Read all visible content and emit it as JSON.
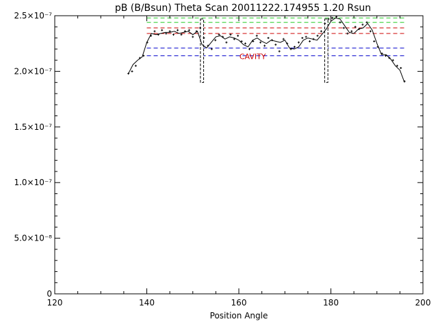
{
  "chart_data": {
    "type": "line",
    "title": "pB (B/Bsun) Theta Scan 20011222.174955 1.20 Rsun",
    "xlabel": "Position Angle",
    "ylabel": "",
    "xlim": [
      120,
      200
    ],
    "ylim": [
      0,
      2.5e-07
    ],
    "grid": false,
    "x_ticks": [
      {
        "value": 120,
        "label": "120"
      },
      {
        "value": 140,
        "label": "140"
      },
      {
        "value": 160,
        "label": "160"
      },
      {
        "value": 180,
        "label": "180"
      },
      {
        "value": 200,
        "label": "200"
      }
    ],
    "y_ticks": [
      {
        "value": 0,
        "label": "0"
      },
      {
        "value": 5e-08,
        "label": "5.0×10⁻⁸"
      },
      {
        "value": 1e-07,
        "label": "1.0×10⁻⁷"
      },
      {
        "value": 1.5e-07,
        "label": "1.5×10⁻⁷"
      },
      {
        "value": 2e-07,
        "label": "2.0×10⁻⁷"
      },
      {
        "value": 2.5e-07,
        "label": "2.5×10⁻⁷"
      }
    ],
    "series": [
      {
        "color": "#000000",
        "style": "line",
        "x": [
          136,
          137,
          138,
          139,
          140,
          141,
          142,
          143,
          144,
          145,
          146,
          147,
          148,
          149,
          150,
          151,
          152,
          153,
          154,
          155,
          156,
          157,
          158,
          159,
          160,
          161,
          162,
          163,
          164,
          165,
          166,
          167,
          168,
          169,
          170,
          171,
          172,
          173,
          174,
          175,
          176,
          177,
          178,
          179,
          180,
          181,
          182,
          183,
          184,
          185,
          186,
          187,
          188,
          189,
          190,
          191,
          192,
          193,
          194,
          195,
          196
        ],
        "y": [
          1.98e-07,
          2.06e-07,
          2.1e-07,
          2.13e-07,
          2.26e-07,
          2.34e-07,
          2.33e-07,
          2.34e-07,
          2.35e-07,
          2.35e-07,
          2.36e-07,
          2.34e-07,
          2.35e-07,
          2.36e-07,
          2.33e-07,
          2.36e-07,
          2.24e-07,
          2.21e-07,
          2.26e-07,
          2.31e-07,
          2.32e-07,
          2.29e-07,
          2.31e-07,
          2.3e-07,
          2.28e-07,
          2.24e-07,
          2.22e-07,
          2.28e-07,
          2.3e-07,
          2.27e-07,
          2.25e-07,
          2.28e-07,
          2.27e-07,
          2.26e-07,
          2.28e-07,
          2.21e-07,
          2.2e-07,
          2.22e-07,
          2.28e-07,
          2.3e-07,
          2.29e-07,
          2.28e-07,
          2.33e-07,
          2.38e-07,
          2.45e-07,
          2.48e-07,
          2.47e-07,
          2.41e-07,
          2.35e-07,
          2.34e-07,
          2.38e-07,
          2.39e-07,
          2.43e-07,
          2.37e-07,
          2.25e-07,
          2.15e-07,
          2.15e-07,
          2.11e-07,
          2.05e-07,
          2.01e-07,
          1.9e-07
        ]
      },
      {
        "color": "#000000",
        "style": "points",
        "x": [
          136,
          136.8,
          137.6,
          138.5,
          139.3,
          140.1,
          140.9,
          141.7,
          142.5,
          143.3,
          144.2,
          145,
          145.8,
          146.7,
          147.5,
          148.3,
          149.2,
          150,
          150.8,
          151.6,
          152.4,
          153.3,
          154.1,
          154.9,
          155.7,
          156.5,
          157.3,
          158.2,
          159,
          159.8,
          160.6,
          161.4,
          162.3,
          163.1,
          163.9,
          164.7,
          165.6,
          166.4,
          167.2,
          168,
          168.8,
          169.7,
          170.5,
          171.3,
          172.1,
          173,
          173.8,
          174.6,
          175.4,
          176.2,
          177.1,
          177.9,
          178.7,
          179.5,
          180.3,
          181.2,
          182,
          182.8,
          183.6,
          184.5,
          185.3,
          186.1,
          186.9,
          187.8,
          188.6,
          189.4,
          190.2,
          191.1,
          191.9,
          192.7,
          193.5,
          194.4,
          195.2,
          196
        ],
        "y": [
          1.98e-07,
          2e-07,
          2.05e-07,
          2.12e-07,
          2.14e-07,
          2.26e-07,
          2.32e-07,
          2.36e-07,
          2.33e-07,
          2.37e-07,
          2.34e-07,
          2.36e-07,
          2.33e-07,
          2.37e-07,
          2.33e-07,
          2.36e-07,
          2.37e-07,
          2.31e-07,
          2.36e-07,
          2.39e-07,
          2.3e-07,
          2.23e-07,
          2.2e-07,
          2.28e-07,
          2.33e-07,
          2.31e-07,
          2.26e-07,
          2.33e-07,
          2.29e-07,
          2.32e-07,
          2.27e-07,
          2.25e-07,
          2.2e-07,
          2.27e-07,
          2.32e-07,
          2.26e-07,
          2.23e-07,
          2.3e-07,
          2.28e-07,
          2.24e-07,
          2.18e-07,
          2.29e-07,
          2.25e-07,
          2.2e-07,
          2.22e-07,
          2.26e-07,
          2.3e-07,
          2.31e-07,
          2.27e-07,
          2.29e-07,
          2.32e-07,
          2.36e-07,
          2.43e-07,
          2.47e-07,
          2.48e-07,
          2.49e-07,
          2.44e-07,
          2.39e-07,
          2.34e-07,
          2.36e-07,
          2.4e-07,
          2.38e-07,
          2.42e-07,
          2.44e-07,
          2.36e-07,
          2.27e-07,
          2.22e-07,
          2.16e-07,
          2.14e-07,
          2.12e-07,
          2.1e-07,
          2.05e-07,
          2.03e-07,
          1.91e-07
        ]
      }
    ],
    "reference_lines": [
      {
        "y": 2.48e-07,
        "color": "#22cc22"
      },
      {
        "y": 2.44e-07,
        "color": "#22cc22"
      },
      {
        "y": 2.39e-07,
        "color": "#cc0000"
      },
      {
        "y": 2.34e-07,
        "color": "#cc0000"
      },
      {
        "y": 2.21e-07,
        "color": "#0000cc"
      },
      {
        "y": 2.14e-07,
        "color": "#0000cc"
      }
    ],
    "reference_x_range": [
      140,
      196
    ],
    "markers": [
      {
        "x_center": 152,
        "x_halfwidth": 0.35,
        "y_top": 2.47e-07,
        "y_bottom": 1.9e-07
      },
      {
        "x_center": 179,
        "x_halfwidth": 0.35,
        "y_top": 2.47e-07,
        "y_bottom": 1.9e-07
      }
    ],
    "annotations": [
      {
        "text": "CAVITY",
        "x": 163,
        "y": 2.11e-07,
        "color": "#cc0000"
      }
    ]
  }
}
